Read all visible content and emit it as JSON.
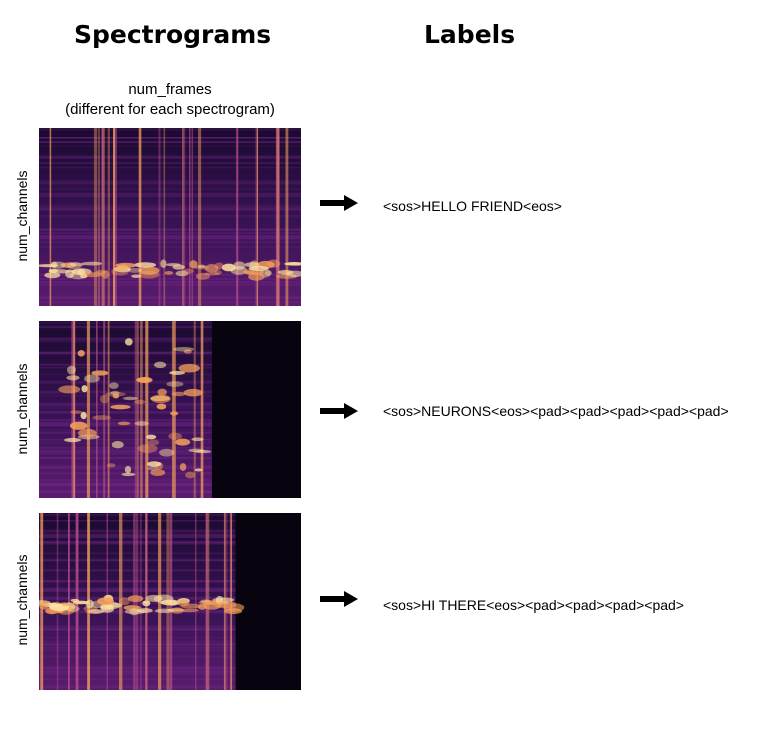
{
  "headings": {
    "spectrograms": "Spectrograms",
    "labels": "Labels"
  },
  "axis": {
    "frames_line1": "num_frames",
    "frames_line2": "(different for each spectrogram)",
    "channels": "num_channels"
  },
  "rows": [
    {
      "label": "<sos>HELLO FRIEND<eos>",
      "active_fraction": 1.0
    },
    {
      "label": "<sos>NEURONS<eos><pad><pad><pad><pad><pad>",
      "active_fraction": 0.66
    },
    {
      "label": "<sos>HI THERE<eos><pad><pad><pad><pad>",
      "active_fraction": 0.75
    }
  ],
  "colors": {
    "background": "#07040f",
    "mid": "#7a2a8c",
    "hot": "#f5a05a",
    "peak": "#fde3a0"
  }
}
